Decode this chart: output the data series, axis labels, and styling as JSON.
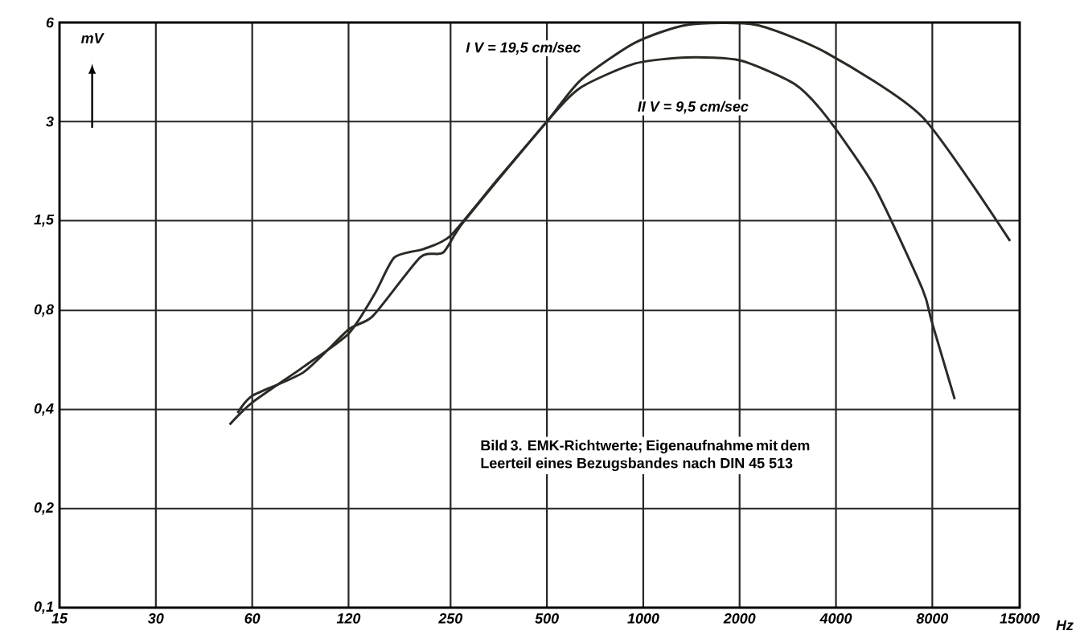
{
  "chart_data": {
    "type": "line",
    "xlabel": "Hz",
    "ylabel": "mV",
    "log": "xy",
    "grid": true,
    "marker": "none",
    "line_style": "solid",
    "xlim": [
      15,
      15000
    ],
    "ylim": [
      0.1,
      6
    ],
    "xticks": [
      15,
      30,
      60,
      120,
      250,
      500,
      1000,
      2000,
      4000,
      8000,
      15000
    ],
    "yticks": [
      {
        "value": 0.1,
        "label": "0,1"
      },
      {
        "value": 0.2,
        "label": "0,2"
      },
      {
        "value": 0.4,
        "label": "0,4"
      },
      {
        "value": 0.8,
        "label": "0,8"
      },
      {
        "value": 1.5,
        "label": "1,5"
      },
      3,
      6
    ],
    "series": [
      {
        "name": "I V = 19,5 cm/sec",
        "color": "#2b2a25",
        "x": [
          51,
          60,
          87,
          120,
          145,
          167,
          206,
          250,
          350,
          500,
          636,
          940,
          1370,
          2250,
          3740,
          7450,
          14000
        ],
        "values": [
          0.36,
          0.42,
          0.54,
          0.68,
          0.9,
          1.16,
          1.23,
          1.35,
          2.0,
          3.0,
          4.0,
          5.2,
          5.9,
          5.9,
          4.85,
          3.1,
          1.3
        ]
      },
      {
        "name": "II V = 9,5 cm/sec",
        "color": "#2b2a25",
        "x": [
          54,
          60,
          87,
          120,
          143,
          201,
          237,
          275,
          500,
          636,
          940,
          1370,
          2010,
          2970,
          3740,
          5280,
          7450,
          7970,
          9400
        ],
        "values": [
          0.39,
          0.44,
          0.52,
          0.7,
          0.77,
          1.16,
          1.2,
          1.49,
          3.0,
          3.8,
          4.5,
          4.7,
          4.6,
          3.9,
          3.1,
          1.9,
          0.93,
          0.74,
          0.43
        ]
      }
    ],
    "annotations": [
      "Bild 3. EMK-Richtwerte; Eigenaufnahme mit dem Leerteil eines Bezugsbandes nach DIN 45 513"
    ]
  }
}
